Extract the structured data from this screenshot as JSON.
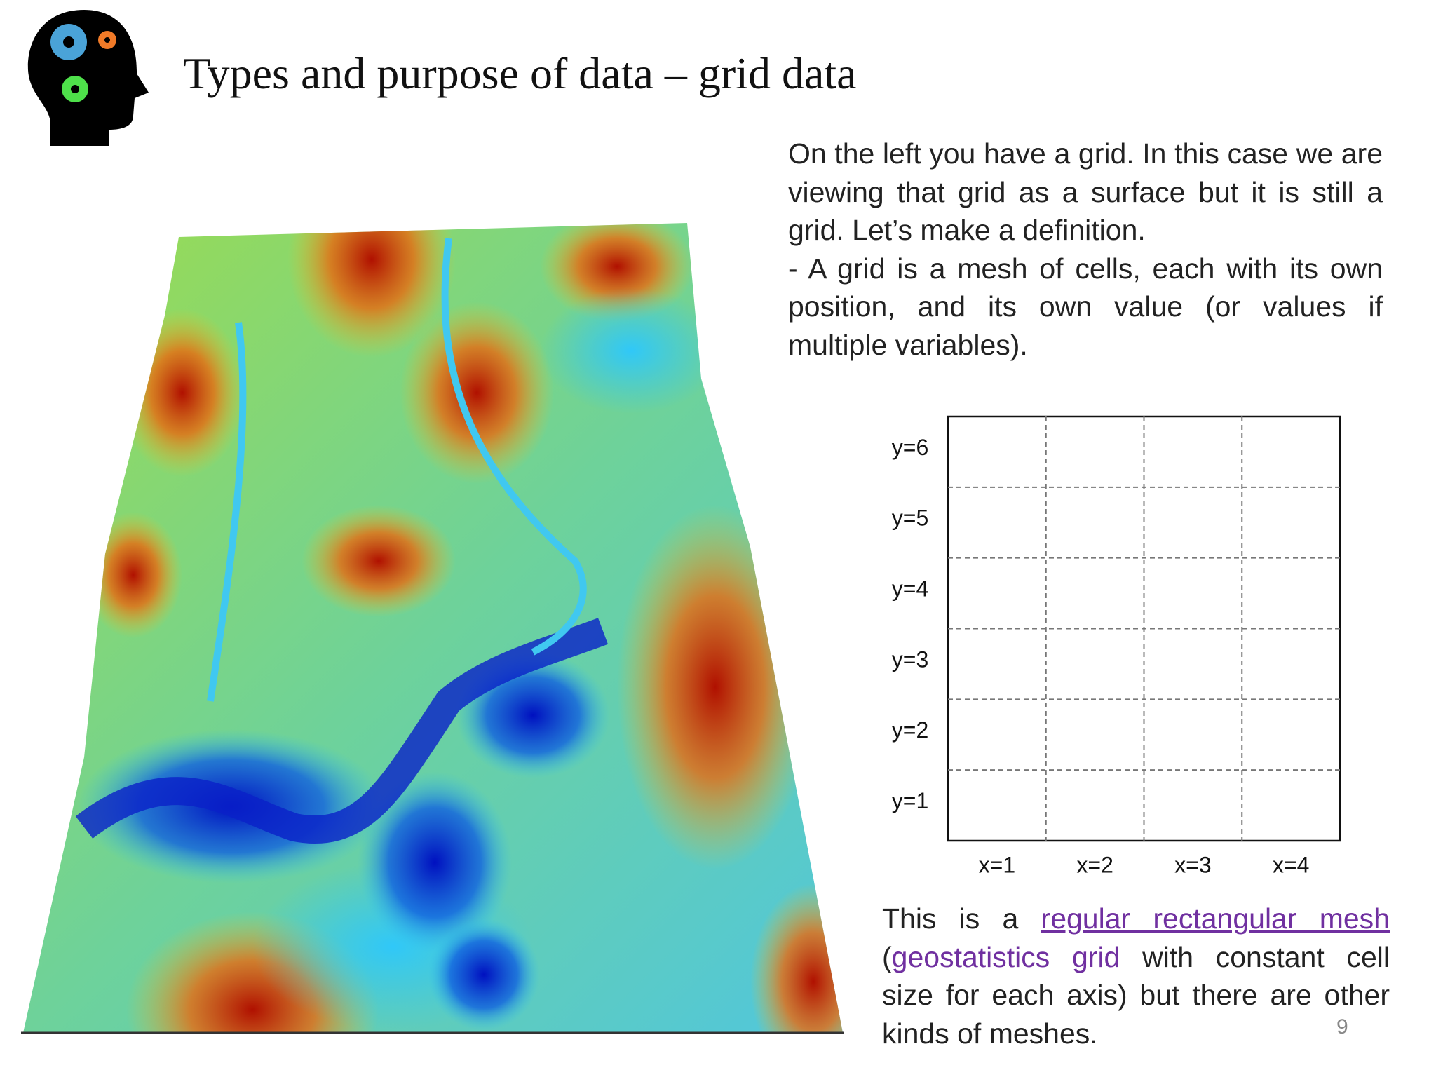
{
  "header": {
    "title": "Types and purpose of data – grid data"
  },
  "intro": {
    "paragraphs": [
      "On the left you have a grid. In this case we are viewing that grid as a surface but it is still a grid. Let’s make a definition.",
      "- A grid is a mesh of cells, each with its own position, and its own value (or values if multiple variables)."
    ]
  },
  "grid": {
    "y_labels": [
      "y=6",
      "y=5",
      "y=4",
      "y=3",
      "y=2",
      "y=1"
    ],
    "x_labels": [
      "x=1",
      "x=2",
      "x=3",
      "x=4"
    ]
  },
  "caption": {
    "parts": [
      "This is a",
      "regular rectangular mesh",
      "(",
      "geostatistics grid",
      "with constant cell size for each axis) but there are other kinds of meshes."
    ]
  },
  "page_number": 9
}
